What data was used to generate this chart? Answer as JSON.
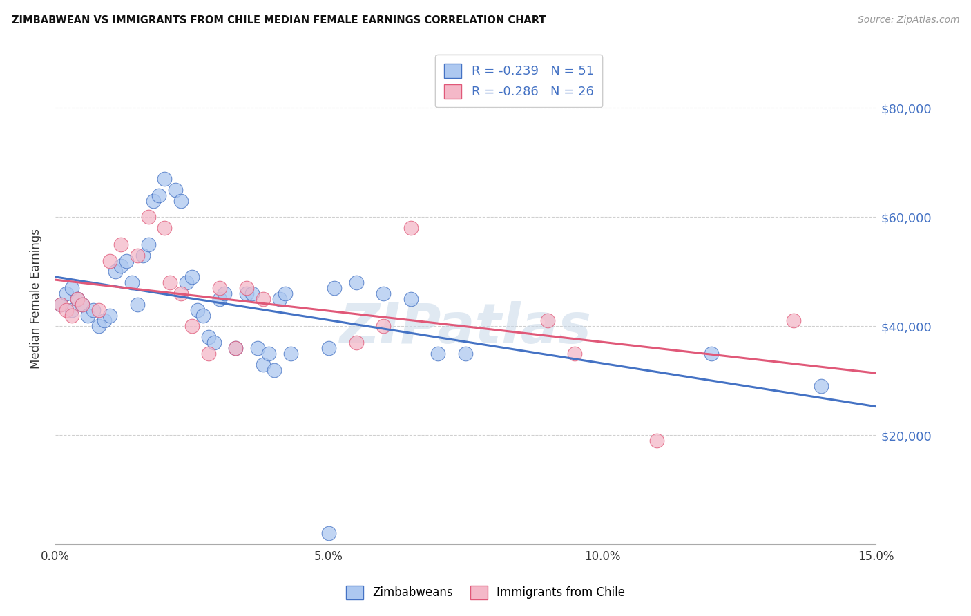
{
  "title": "ZIMBABWEAN VS IMMIGRANTS FROM CHILE MEDIAN FEMALE EARNINGS CORRELATION CHART",
  "source": "Source: ZipAtlas.com",
  "ylabel": "Median Female Earnings",
  "xlim": [
    0.0,
    0.15
  ],
  "ylim": [
    0,
    90000
  ],
  "yticks": [
    20000,
    40000,
    60000,
    80000
  ],
  "ytick_labels": [
    "$20,000",
    "$40,000",
    "$60,000",
    "$80,000"
  ],
  "xticks": [
    0.0,
    0.05,
    0.1,
    0.15
  ],
  "xtick_labels": [
    "0.0%",
    "5.0%",
    "10.0%",
    "15.0%"
  ],
  "watermark": "ZIPatlas",
  "legend_r1": "-0.239",
  "legend_n1": "51",
  "legend_r2": "-0.286",
  "legend_n2": "26",
  "blue_fill": "#adc8f0",
  "pink_fill": "#f4b8c8",
  "line_blue": "#4472c4",
  "line_pink": "#e05878",
  "label_blue": "Zimbabweans",
  "label_pink": "Immigrants from Chile",
  "zimbabwe_x": [
    0.001,
    0.002,
    0.003,
    0.003,
    0.004,
    0.005,
    0.006,
    0.007,
    0.008,
    0.009,
    0.01,
    0.011,
    0.012,
    0.013,
    0.014,
    0.015,
    0.016,
    0.017,
    0.018,
    0.019,
    0.02,
    0.022,
    0.023,
    0.024,
    0.025,
    0.026,
    0.027,
    0.028,
    0.029,
    0.03,
    0.031,
    0.033,
    0.035,
    0.036,
    0.037,
    0.038,
    0.039,
    0.04,
    0.041,
    0.042,
    0.043,
    0.05,
    0.051,
    0.055,
    0.06,
    0.065,
    0.07,
    0.075,
    0.12,
    0.14,
    0.05
  ],
  "zimbabwe_y": [
    44000,
    46000,
    43000,
    47000,
    45000,
    44000,
    42000,
    43000,
    40000,
    41000,
    42000,
    50000,
    51000,
    52000,
    48000,
    44000,
    53000,
    55000,
    63000,
    64000,
    67000,
    65000,
    63000,
    48000,
    49000,
    43000,
    42000,
    38000,
    37000,
    45000,
    46000,
    36000,
    46000,
    46000,
    36000,
    33000,
    35000,
    32000,
    45000,
    46000,
    35000,
    36000,
    47000,
    48000,
    46000,
    45000,
    35000,
    35000,
    35000,
    29000,
    2000
  ],
  "chile_x": [
    0.001,
    0.002,
    0.003,
    0.004,
    0.005,
    0.008,
    0.01,
    0.012,
    0.015,
    0.017,
    0.02,
    0.021,
    0.023,
    0.025,
    0.028,
    0.03,
    0.033,
    0.035,
    0.038,
    0.055,
    0.06,
    0.065,
    0.09,
    0.095,
    0.11,
    0.135
  ],
  "chile_y": [
    44000,
    43000,
    42000,
    45000,
    44000,
    43000,
    52000,
    55000,
    53000,
    60000,
    58000,
    48000,
    46000,
    40000,
    35000,
    47000,
    36000,
    47000,
    45000,
    37000,
    40000,
    58000,
    41000,
    35000,
    19000,
    41000
  ]
}
